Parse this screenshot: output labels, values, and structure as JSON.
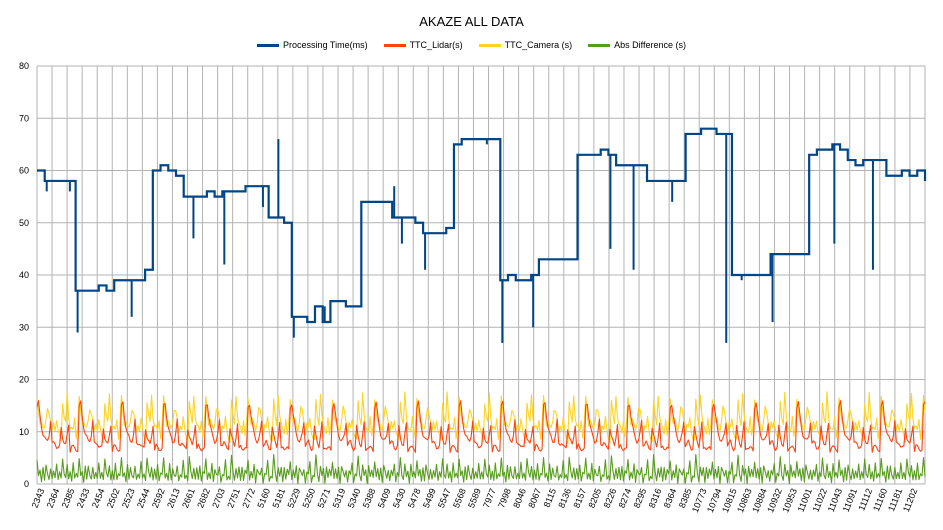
{
  "chart_data": {
    "type": "line",
    "title": "AKAZE ALL DATA",
    "xlabel": "",
    "ylabel": "",
    "ylim": [
      0,
      80
    ],
    "yticks": [
      0,
      10,
      20,
      30,
      40,
      50,
      60,
      70,
      80
    ],
    "grid": true,
    "legend_position": "top",
    "x_tick_labels": [
      "2343",
      "2364",
      "2385",
      "2433",
      "2454",
      "2502",
      "2523",
      "2544",
      "2592",
      "2613",
      "2661",
      "2682",
      "2703",
      "2751",
      "2772",
      "5160",
      "5181",
      "5229",
      "5250",
      "5271",
      "5319",
      "5340",
      "5388",
      "5409",
      "5430",
      "5478",
      "5499",
      "5547",
      "5568",
      "5589",
      "7977",
      "7998",
      "8046",
      "8067",
      "8115",
      "8136",
      "8157",
      "8205",
      "8226",
      "8274",
      "8295",
      "8316",
      "8364",
      "8385",
      "10773",
      "10794",
      "10815",
      "10863",
      "10884",
      "10932",
      "10953",
      "11001",
      "11022",
      "11043",
      "11091",
      "11112",
      "11160",
      "11181",
      "11202"
    ],
    "series": [
      {
        "name": "Processing Time(ms)",
        "color": "#004586",
        "values": [
          60,
          58,
          58,
          58,
          58,
          37,
          37,
          37,
          38,
          37,
          39,
          39,
          39,
          39,
          41,
          60,
          61,
          60,
          59,
          55,
          55,
          55,
          56,
          55,
          56,
          56,
          56,
          57,
          57,
          57,
          51,
          51,
          50,
          32,
          32,
          31,
          34,
          31,
          35,
          35,
          34,
          34,
          54,
          54,
          54,
          54,
          51,
          51,
          51,
          50,
          48,
          48,
          48,
          49,
          65,
          66,
          66,
          66,
          66,
          66,
          39,
          40,
          39,
          39,
          40,
          43,
          43,
          43,
          43,
          43,
          63,
          63,
          63,
          64,
          63,
          61,
          61,
          61,
          61,
          58,
          58,
          58,
          58,
          58,
          67,
          67,
          68,
          68,
          67,
          67,
          40,
          40,
          40,
          40,
          40,
          44,
          44,
          44,
          44,
          44,
          63,
          64,
          64,
          65,
          64,
          62,
          61,
          62,
          62,
          62,
          59,
          59,
          60,
          59,
          60,
          58
        ],
        "spikes": [
          [
            1,
            56
          ],
          [
            4,
            56
          ],
          [
            5,
            29
          ],
          [
            12,
            32
          ],
          [
            20,
            47
          ],
          [
            24,
            42
          ],
          [
            29,
            53
          ],
          [
            31,
            66
          ],
          [
            33,
            28
          ],
          [
            37,
            34
          ],
          [
            46,
            57
          ],
          [
            47,
            46
          ],
          [
            50,
            41
          ],
          [
            58,
            65
          ],
          [
            60,
            27
          ],
          [
            64,
            30
          ],
          [
            74,
            45
          ],
          [
            77,
            41
          ],
          [
            82,
            54
          ],
          [
            89,
            27
          ],
          [
            91,
            39
          ],
          [
            95,
            31
          ],
          [
            103,
            46
          ],
          [
            108,
            41
          ]
        ]
      },
      {
        "name": "TTC_Lidar(s)",
        "color": "#ff420e",
        "cycle": [
          14.8,
          15.5,
          13.0,
          11.0,
          9.6,
          8.8,
          8.2,
          8.4,
          9.5,
          12.0,
          7.6,
          7.8,
          8.0,
          7.2,
          6.8,
          7.0,
          10.8,
          9.0,
          8.0,
          7.4,
          9.2,
          11.5,
          6.5,
          7.2,
          7.0,
          6.8,
          6.7,
          6.5
        ]
      },
      {
        "name": "TTC_Camera (s)",
        "color": "#ffd320",
        "cycle": [
          16.5,
          13.5,
          11.5,
          12.2,
          11.0,
          10.5,
          12.0,
          14.5,
          13.8,
          12.2,
          9.8,
          11.5,
          10.5,
          12.5,
          10.2,
          9.0,
          8.2,
          15.8,
          13.0,
          11.6,
          17.2,
          12.8,
          11.0,
          10.8,
          10.0,
          12.5,
          9.0,
          11.5
        ]
      },
      {
        "name": "Abs Difference (s)",
        "color": "#579d1c",
        "cycle": [
          4.6,
          1.2,
          2.5,
          0.8,
          3.5,
          0.5,
          3.2,
          2.0,
          1.3,
          3.0,
          0.6,
          2.2,
          1.5,
          4.2,
          0.7,
          1.9,
          1.1,
          5.2,
          2.1,
          0.9,
          3.4,
          1.2,
          2.8,
          0.5,
          3.6,
          1.0,
          2.4,
          1.6
        ]
      }
    ]
  }
}
